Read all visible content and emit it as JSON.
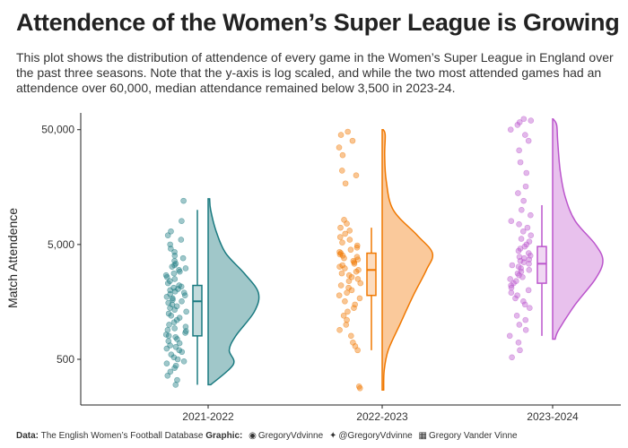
{
  "title": "Attendence of the Women’s Super League is Growing",
  "subtitle": "This plot shows the distribution of attendence of every game in the Women’s Super League in England over the past three seasons. Note that the y-axis is log scaled, and while the two most attended games had an attendence over 60,000, median attendance remained below 3,500 in 2023-24.",
  "caption": {
    "data_label": "Data:",
    "data_source": "The English Women’s Football Database",
    "graphic_label": "Graphic:",
    "github_icon": "github-icon",
    "github_handle": "GregoryVdvinne",
    "twitter_icon": "twitter-icon",
    "twitter_handle": "@GregoryVdvinne",
    "linkedin_icon": "linkedin-icon",
    "linkedin_name": "Gregory Vander Vinne"
  },
  "chart_data": {
    "type": "raincloud",
    "ylabel": "Match Attendence",
    "yscale": "log",
    "ylim": [
      200,
      70000
    ],
    "yticks": [
      {
        "value": 500,
        "label": "500"
      },
      {
        "value": 5000,
        "label": "5,000"
      },
      {
        "value": 50000,
        "label": "50,000"
      }
    ],
    "categories": [
      "2021-2022",
      "2022-2023",
      "2023-2024"
    ],
    "series": [
      {
        "category": "2021-2022",
        "color": "#1a7a80",
        "fill": "#8fbdc0",
        "box": {
          "min": 300,
          "q1": 800,
          "median": 1600,
          "q3": 2200,
          "max": 10000
        },
        "points": [
          300,
          330,
          360,
          390,
          420,
          440,
          460,
          480,
          500,
          520,
          550,
          580,
          600,
          620,
          640,
          660,
          690,
          720,
          750,
          780,
          800,
          820,
          850,
          880,
          900,
          930,
          960,
          1000,
          1050,
          1100,
          1150,
          1200,
          1250,
          1300,
          1350,
          1400,
          1450,
          1500,
          1550,
          1600,
          1650,
          1700,
          1750,
          1800,
          1850,
          1900,
          1950,
          2000,
          2050,
          2100,
          2150,
          2200,
          2300,
          2400,
          2500,
          2600,
          2700,
          2800,
          2900,
          3000,
          3100,
          3200,
          3300,
          3400,
          3600,
          3800,
          4000,
          4300,
          4600,
          5000,
          5500,
          6000,
          6500,
          8000,
          12000
        ],
        "density": [
          [
            300,
            0.05
          ],
          [
            450,
            0.5
          ],
          [
            600,
            0.42
          ],
          [
            800,
            0.55
          ],
          [
            1300,
            0.92
          ],
          [
            1900,
            1.0
          ],
          [
            2800,
            0.72
          ],
          [
            4200,
            0.35
          ],
          [
            6500,
            0.16
          ],
          [
            10000,
            0.05
          ],
          [
            12500,
            0.03
          ]
        ]
      },
      {
        "category": "2022-2023",
        "color": "#f07800",
        "fill": "#f9c08a",
        "box": {
          "min": 600,
          "q1": 1800,
          "median": 3000,
          "q3": 4200,
          "max": 7000
        },
        "points": [
          280,
          290,
          600,
          650,
          700,
          800,
          900,
          1000,
          1100,
          1200,
          1300,
          1400,
          1500,
          1600,
          1700,
          1800,
          1900,
          2000,
          2100,
          2200,
          2300,
          2400,
          2500,
          2600,
          2700,
          2800,
          2900,
          3000,
          3100,
          3200,
          3300,
          3400,
          3500,
          3600,
          3700,
          3800,
          3900,
          4000,
          4100,
          4200,
          4300,
          4500,
          4700,
          4900,
          5200,
          5500,
          5800,
          6200,
          6600,
          7000,
          7600,
          8200,
          17000,
          20000,
          22000,
          30000,
          35000,
          40000,
          45000,
          48000
        ],
        "density": [
          [
            270,
            0.03
          ],
          [
            400,
            0.04
          ],
          [
            600,
            0.12
          ],
          [
            1000,
            0.35
          ],
          [
            1800,
            0.62
          ],
          [
            3000,
            0.88
          ],
          [
            4200,
            1.0
          ],
          [
            6000,
            0.7
          ],
          [
            10000,
            0.22
          ],
          [
            18000,
            0.08
          ],
          [
            30000,
            0.05
          ],
          [
            45000,
            0.06
          ],
          [
            50000,
            0.02
          ]
        ]
      },
      {
        "category": "2023-2024",
        "color": "#bb55cc",
        "fill": "#e4b6ea",
        "box": {
          "min": 800,
          "q1": 2300,
          "median": 3400,
          "q3": 4800,
          "max": 11000
        },
        "points": [
          520,
          600,
          700,
          800,
          900,
          1000,
          1100,
          1200,
          1400,
          1500,
          1600,
          1700,
          1800,
          1900,
          2000,
          2100,
          2200,
          2300,
          2400,
          2500,
          2600,
          2700,
          2800,
          2900,
          3000,
          3100,
          3200,
          3300,
          3400,
          3500,
          3600,
          3700,
          3800,
          3900,
          4000,
          4200,
          4400,
          4600,
          4800,
          5000,
          5300,
          5600,
          6000,
          6500,
          7000,
          7500,
          8000,
          9000,
          10000,
          12000,
          14000,
          16000,
          21000,
          26000,
          33000,
          40000,
          45000,
          50000,
          55000,
          58000,
          60000,
          62000
        ],
        "density": [
          [
            750,
            0.05
          ],
          [
            900,
            0.12
          ],
          [
            1500,
            0.45
          ],
          [
            2500,
            0.85
          ],
          [
            3600,
            1.0
          ],
          [
            5000,
            0.85
          ],
          [
            8000,
            0.45
          ],
          [
            13000,
            0.25
          ],
          [
            22000,
            0.15
          ],
          [
            40000,
            0.1
          ],
          [
            55000,
            0.08
          ],
          [
            62000,
            0.01
          ]
        ]
      }
    ]
  }
}
